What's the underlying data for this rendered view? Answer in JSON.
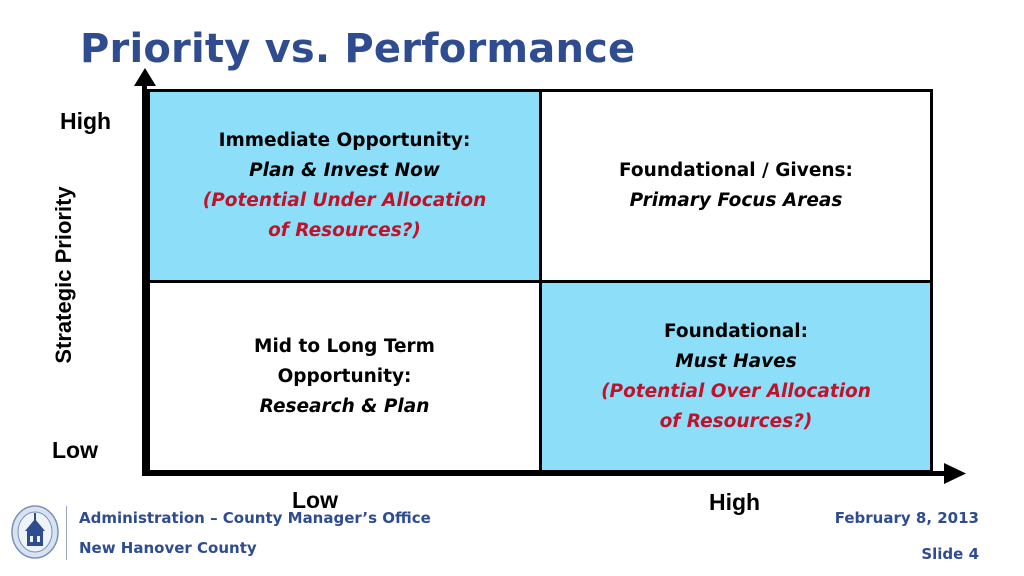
{
  "title": "Priority vs. Performance",
  "y_axis": {
    "title": "Strategic Priority",
    "high": "High",
    "low": "Low"
  },
  "x_axis": {
    "low": "Low",
    "high": "High"
  },
  "quadrants": {
    "top_left": {
      "heading": "Immediate Opportunity:",
      "subheading": "Plan & Invest Now",
      "note_line1": "(Potential Under Allocation",
      "note_line2": "of Resources?)"
    },
    "top_right": {
      "heading": "Foundational / Givens:",
      "subheading": "Primary Focus Areas"
    },
    "bottom_left": {
      "heading_line1": "Mid to Long Term",
      "heading_line2": "Opportunity:",
      "subheading": "Research & Plan"
    },
    "bottom_right": {
      "heading": "Foundational:",
      "subheading": "Must Haves",
      "note_line1": "(Potential Over Allocation",
      "note_line2": "of Resources?)"
    }
  },
  "footer": {
    "office": "Administration – County Manager’s Office",
    "county": "New Hanover County",
    "date": "February 8, 2013",
    "slide": "Slide 4"
  },
  "colors": {
    "title": "#2E4C8F",
    "quadrant_fill": "#8DDEF9",
    "note_red": "#C0122A"
  },
  "icons": {
    "seal": "county-seal-icon"
  }
}
